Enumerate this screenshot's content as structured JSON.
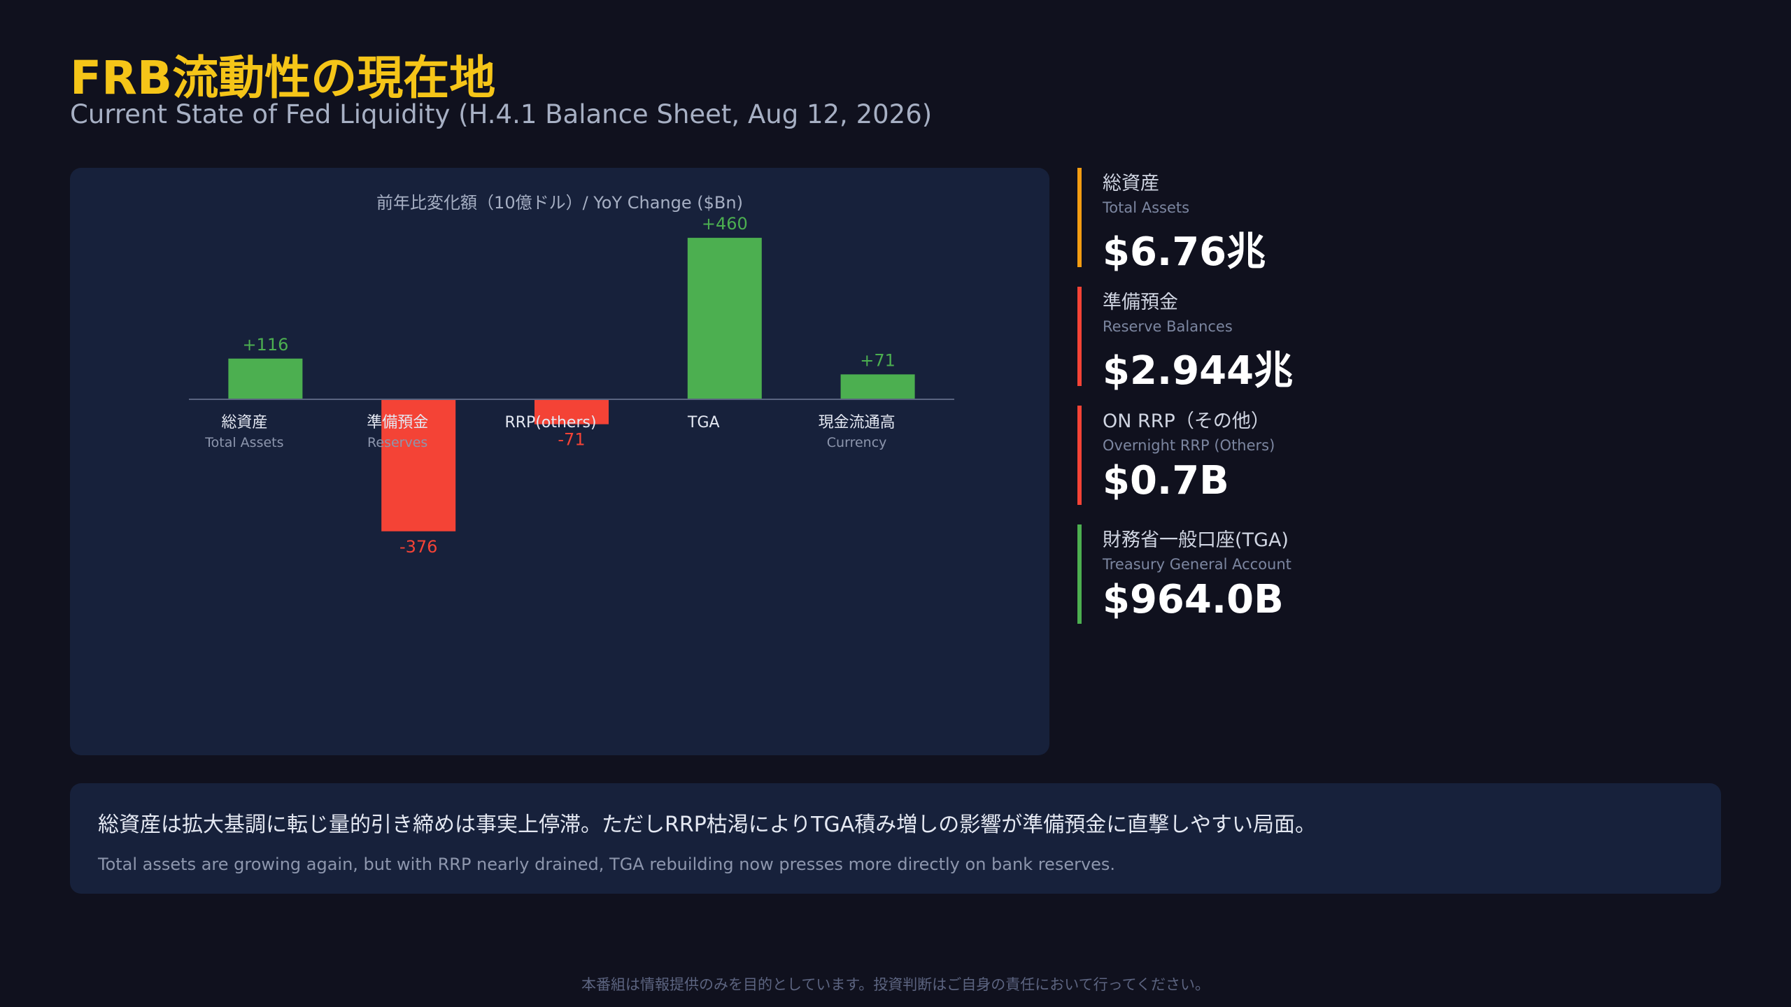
{
  "header": {
    "title": "FRB流動性の現在地",
    "subtitle": "Current State of Fed Liquidity (H.4.1 Balance Sheet, Aug 12, 2026)"
  },
  "chart_data": {
    "type": "bar",
    "title": "前年比変化額（10億ドル）/ YoY Change ($Bn)",
    "categories": [
      "総資産",
      "準備預金",
      "RRP(others)",
      "TGA",
      "現金流通高"
    ],
    "category_subtitles": [
      "Total Assets",
      "Reserves",
      null,
      null,
      "Currency"
    ],
    "values": [
      116,
      -376,
      -71,
      460,
      71
    ],
    "value_labels": [
      "+116",
      "-376",
      "-71",
      "+460",
      "+71"
    ],
    "positive_color": "#4caf50",
    "negative_color": "#f44336",
    "ylim": [
      -500,
      500
    ]
  },
  "kpis": [
    {
      "label": "総資産",
      "sublabel": "Total Assets",
      "value": "$6.76兆",
      "color": "#f39c12"
    },
    {
      "label": "準備預金",
      "sublabel": "Reserve Balances",
      "value": "$2.944兆",
      "color": "#f44336"
    },
    {
      "label": "ON RRP（その他）",
      "sublabel": "Overnight RRP (Others)",
      "value": "$0.7B",
      "color": "#f44336"
    },
    {
      "label": "財務省一般口座(TGA)",
      "sublabel": "Treasury General Account",
      "value": "$964.0B",
      "color": "#4caf50"
    }
  ],
  "note": {
    "jp": "総資産は拡大基調に転じ量的引き締めは事実上停滞。ただしRRP枯渇によりTGA積み増しの影響が準備預金に直撃しやすい局面。",
    "en": "Total assets are growing again, but with RRP nearly drained, TGA rebuilding now presses more directly on bank reserves."
  },
  "footer": {
    "disclaimer": "本番組は情報提供のみを目的としています。投資判断はご自身の責任において行ってください。"
  }
}
